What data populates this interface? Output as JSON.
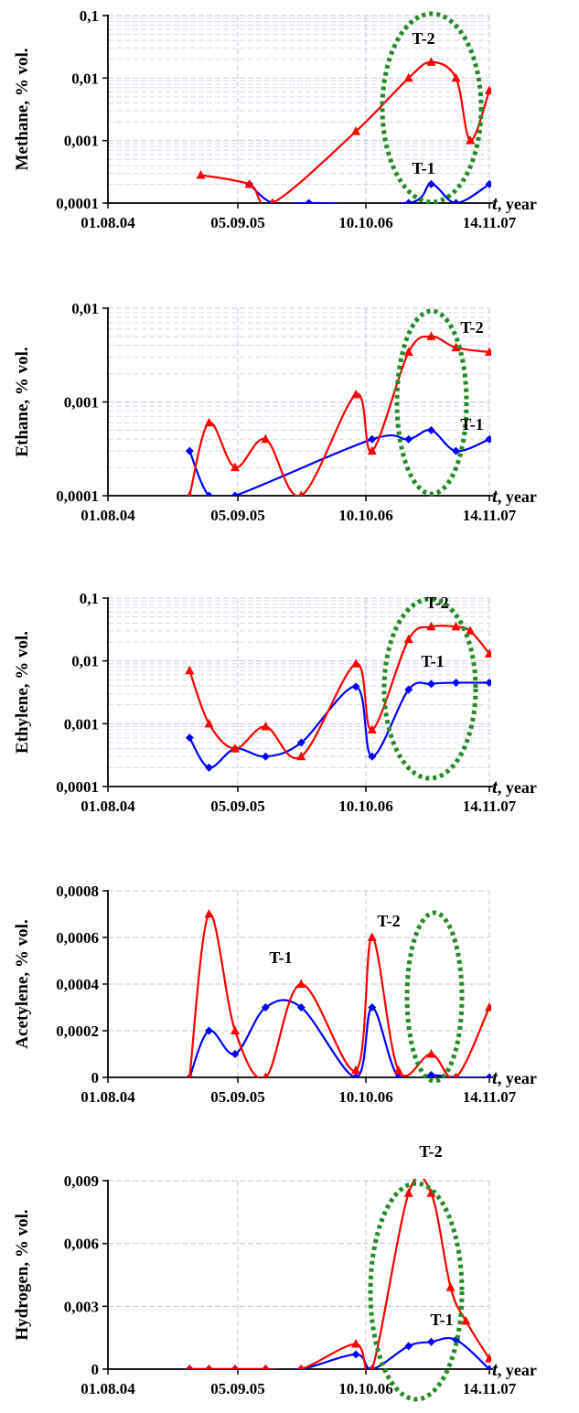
{
  "styles": {
    "series_colors": {
      "T-1": "#0000ff",
      "T-2": "#ff0000"
    },
    "ellipse_color": "#228b22",
    "minor_grid": "#d8d8ec",
    "major_grid": "#c4c4dc"
  },
  "icons": {
    "T-1": "diamond-marker",
    "T-2": "triangle-marker"
  },
  "chart_data": [
    {
      "type": "line",
      "ylabel": "Methane, % vol.",
      "xlabel_var": "t",
      "xlabel_unit": ", year",
      "yscale": "log",
      "ylim": [
        0.0001,
        0.1
      ],
      "yticks": [
        "0,0001",
        "0,001",
        "0,01",
        "0,1"
      ],
      "xlim": [
        "2004-08-01",
        "2007-11-14"
      ],
      "xticks": [
        "01.08.04",
        "05.09.05",
        "10.10.06",
        "14.11.07"
      ],
      "series": [
        {
          "name": "T-1",
          "marker": "diamond",
          "points": [
            [
              "2005-10-20",
              0.0002
            ],
            [
              "2006-01-01",
              0.0001
            ],
            [
              "2006-04-25",
              0.0001
            ],
            [
              "2007-03-05",
              0.0001
            ],
            [
              "2007-05-15",
              0.0002
            ],
            [
              "2007-08-01",
              0.0001
            ],
            [
              "2007-11-14",
              0.0002
            ]
          ]
        },
        {
          "name": "T-2",
          "marker": "triangle",
          "points": [
            [
              "2005-05-20",
              0.00028
            ],
            [
              "2005-10-20",
              0.0002
            ],
            [
              "2006-01-01",
              0.0001
            ],
            [
              "2006-09-20",
              0.0014
            ],
            [
              "2007-03-05",
              0.01
            ],
            [
              "2007-05-15",
              0.018
            ],
            [
              "2007-08-01",
              0.01
            ],
            [
              "2007-09-15",
              0.001
            ],
            [
              "2007-11-14",
              0.0063
            ]
          ]
        }
      ]
    },
    {
      "type": "line",
      "ylabel": "Ethane, % vol.",
      "xlabel_var": "t",
      "xlabel_unit": ", year",
      "yscale": "log",
      "ylim": [
        0.0001,
        0.01
      ],
      "yticks": [
        "0,0001",
        "0,001",
        "0,01"
      ],
      "xlim": [
        "2004-08-01",
        "2007-11-14"
      ],
      "xticks": [
        "01.08.04",
        "05.09.05",
        "10.10.06",
        "14.11.07"
      ],
      "series": [
        {
          "name": "T-1",
          "marker": "diamond",
          "points": [
            [
              "2005-04-15",
              0.0003
            ],
            [
              "2005-06-15",
              0.0001
            ],
            [
              "2005-09-05",
              0.0001
            ],
            [
              "2006-11-10",
              0.0004
            ],
            [
              "2007-03-05",
              0.0004
            ],
            [
              "2007-05-15",
              0.0005
            ],
            [
              "2007-08-01",
              0.0003
            ],
            [
              "2007-11-14",
              0.0004
            ]
          ]
        },
        {
          "name": "T-2",
          "marker": "triangle",
          "points": [
            [
              "2005-04-15",
              0.0001
            ],
            [
              "2005-06-15",
              0.0006
            ],
            [
              "2005-09-05",
              0.0002
            ],
            [
              "2005-12-10",
              0.0004
            ],
            [
              "2006-04-01",
              0.0001
            ],
            [
              "2006-09-20",
              0.0012
            ],
            [
              "2006-11-10",
              0.0003
            ],
            [
              "2007-03-05",
              0.0034
            ],
            [
              "2007-05-15",
              0.005
            ],
            [
              "2007-08-01",
              0.0038
            ],
            [
              "2007-11-14",
              0.0034
            ]
          ]
        }
      ]
    },
    {
      "type": "line",
      "ylabel": "Ethylene, % vol.",
      "xlabel_var": "t",
      "xlabel_unit": ", year",
      "yscale": "log",
      "ylim": [
        0.0001,
        0.1
      ],
      "yticks": [
        "0,0001",
        "0,001",
        "0,01",
        "0,1"
      ],
      "xlim": [
        "2004-08-01",
        "2007-11-14"
      ],
      "xticks": [
        "01.08.04",
        "05.09.05",
        "10.10.06",
        "14.11.07"
      ],
      "series": [
        {
          "name": "T-1",
          "marker": "diamond",
          "points": [
            [
              "2005-04-15",
              0.0006
            ],
            [
              "2005-06-15",
              0.0002
            ],
            [
              "2005-09-05",
              0.0004
            ],
            [
              "2005-12-10",
              0.0003
            ],
            [
              "2006-04-01",
              0.0005
            ],
            [
              "2006-09-20",
              0.0039
            ],
            [
              "2006-11-10",
              0.0003
            ],
            [
              "2007-03-05",
              0.0035
            ],
            [
              "2007-05-15",
              0.0043
            ],
            [
              "2007-08-01",
              0.0045
            ],
            [
              "2007-11-14",
              0.0045
            ]
          ]
        },
        {
          "name": "T-2",
          "marker": "triangle",
          "points": [
            [
              "2005-04-15",
              0.007
            ],
            [
              "2005-06-15",
              0.001
            ],
            [
              "2005-09-05",
              0.0004
            ],
            [
              "2005-12-10",
              0.0009
            ],
            [
              "2006-04-01",
              0.0003
            ],
            [
              "2006-09-20",
              0.009
            ],
            [
              "2006-11-10",
              0.0008
            ],
            [
              "2007-03-05",
              0.022
            ],
            [
              "2007-05-15",
              0.035
            ],
            [
              "2007-08-01",
              0.035
            ],
            [
              "2007-09-15",
              0.03
            ],
            [
              "2007-11-14",
              0.013
            ]
          ]
        }
      ]
    },
    {
      "type": "line",
      "ylabel": "Acetylene, % vol.",
      "xlabel_var": "t",
      "xlabel_unit": ", year",
      "yscale": "linear",
      "ylim": [
        0,
        0.0008
      ],
      "yticks": [
        "0",
        "0,0002",
        "0,0004",
        "0,0006",
        "0,0008"
      ],
      "xlim": [
        "2004-08-01",
        "2007-11-14"
      ],
      "xticks": [
        "01.08.04",
        "05.09.05",
        "10.10.06",
        "14.11.07"
      ],
      "series": [
        {
          "name": "T-1",
          "marker": "diamond",
          "points": [
            [
              "2005-04-15",
              0.0
            ],
            [
              "2005-06-15",
              0.0002
            ],
            [
              "2005-09-05",
              0.0001
            ],
            [
              "2005-12-10",
              0.0003
            ],
            [
              "2006-04-01",
              0.0003
            ],
            [
              "2006-09-20",
              0.0
            ],
            [
              "2006-11-10",
              0.0003
            ],
            [
              "2007-02-01",
              0.0
            ],
            [
              "2007-05-15",
              1e-05
            ],
            [
              "2007-08-01",
              0.0
            ],
            [
              "2007-11-14",
              0.0
            ]
          ]
        },
        {
          "name": "T-2",
          "marker": "triangle",
          "points": [
            [
              "2005-04-15",
              0.0
            ],
            [
              "2005-06-15",
              0.0007
            ],
            [
              "2005-09-05",
              0.0002
            ],
            [
              "2005-12-10",
              0.0
            ],
            [
              "2006-04-01",
              0.0004
            ],
            [
              "2006-09-20",
              3e-05
            ],
            [
              "2006-11-10",
              0.0006
            ],
            [
              "2007-02-01",
              3e-05
            ],
            [
              "2007-05-15",
              0.0001
            ],
            [
              "2007-08-01",
              0.0
            ],
            [
              "2007-11-14",
              0.0003
            ]
          ]
        }
      ]
    },
    {
      "type": "line",
      "ylabel": "Hydrogen, % vol.",
      "xlabel_var": "t",
      "xlabel_unit": ", year",
      "yscale": "linear",
      "ylim": [
        0,
        0.009
      ],
      "yticks": [
        "0",
        "0,003",
        "0,006",
        "0,009"
      ],
      "xlim": [
        "2004-08-01",
        "2007-11-14"
      ],
      "xticks": [
        "01.08.04",
        "05.09.05",
        "10.10.06",
        "14.11.07"
      ],
      "series": [
        {
          "name": "T-1",
          "marker": "diamond",
          "points": [
            [
              "2005-04-15",
              0.0
            ],
            [
              "2005-06-15",
              0.0
            ],
            [
              "2005-09-05",
              0.0
            ],
            [
              "2005-12-10",
              0.0
            ],
            [
              "2006-04-01",
              0.0
            ],
            [
              "2006-09-20",
              0.0007
            ],
            [
              "2006-11-10",
              0.0
            ],
            [
              "2007-03-05",
              0.0011
            ],
            [
              "2007-05-15",
              0.0013
            ],
            [
              "2007-08-01",
              0.0014
            ],
            [
              "2007-11-14",
              0.0
            ]
          ]
        },
        {
          "name": "T-2",
          "marker": "triangle",
          "points": [
            [
              "2005-04-15",
              0.0
            ],
            [
              "2005-06-15",
              0.0
            ],
            [
              "2005-09-05",
              0.0
            ],
            [
              "2005-12-10",
              0.0
            ],
            [
              "2006-04-01",
              0.0
            ],
            [
              "2006-09-20",
              0.0012
            ],
            [
              "2006-11-10",
              0.0
            ],
            [
              "2007-03-05",
              0.0084
            ],
            [
              "2007-05-15",
              0.0084
            ],
            [
              "2007-07-15",
              0.0039
            ],
            [
              "2007-09-01",
              0.0023
            ],
            [
              "2007-11-14",
              0.0005
            ]
          ]
        }
      ]
    }
  ]
}
